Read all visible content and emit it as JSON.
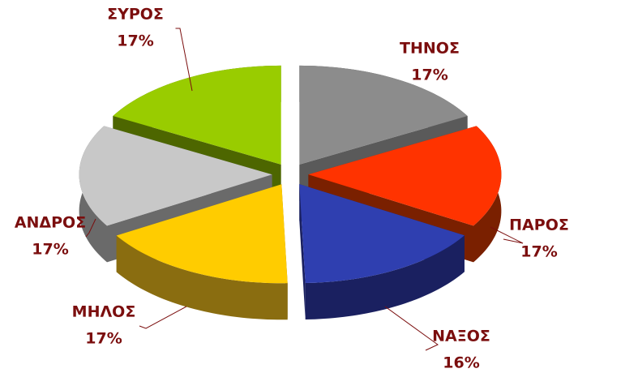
{
  "chart_data": {
    "type": "pie",
    "categories": [
      "ΤΗΝΟΣ",
      "ΠΑΡΟΣ",
      "ΝΑΞΟΣ",
      "ΜΗΛΟΣ",
      "ΑΝΔΡΟΣ",
      "ΣΥΡΟΣ"
    ],
    "values": [
      17,
      17,
      16,
      17,
      17,
      17
    ],
    "value_labels": [
      "17%",
      "17%",
      "16%",
      "17%",
      "17%",
      "17%"
    ],
    "colors": [
      "#8c8c8c",
      "#ff3300",
      "#2f3fb0",
      "#ffcc00",
      "#c8c8c8",
      "#99cc00"
    ],
    "side_colors": [
      "#5a5a5a",
      "#7a2000",
      "#1a2060",
      "#8a6d10",
      "#6a6a6a",
      "#4d6600"
    ],
    "label_color": "#7b0e0e"
  }
}
